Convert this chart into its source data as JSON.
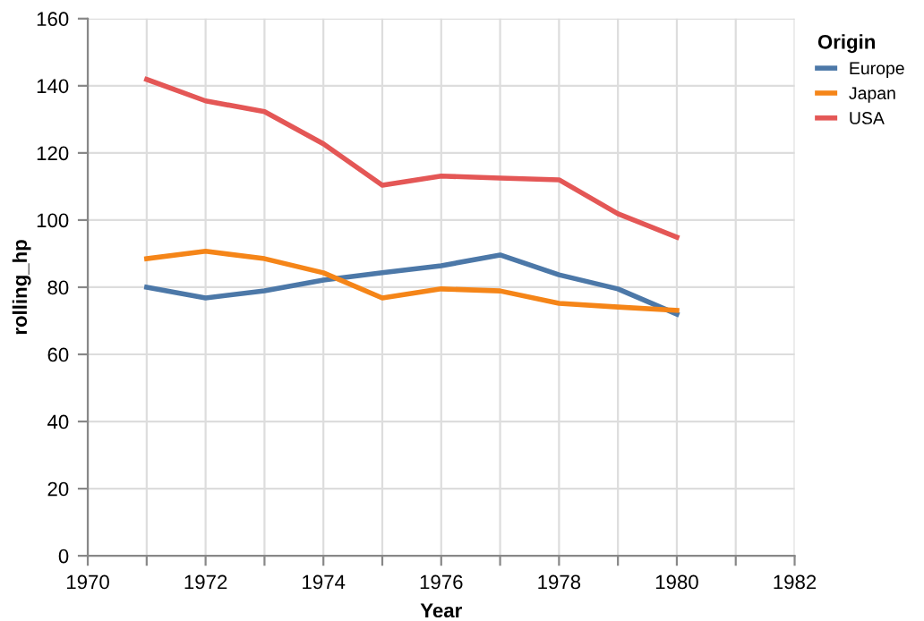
{
  "chart_data": {
    "type": "line",
    "xlabel": "Year",
    "ylabel": "rolling_hp",
    "legend_title": "Origin",
    "legend": "top right",
    "grid": true,
    "marker": "none",
    "line_style": "solid",
    "x": [
      1971,
      1972,
      1973,
      1974,
      1975,
      1976,
      1977,
      1978,
      1979,
      1980
    ],
    "xlim": [
      1970,
      1982
    ],
    "xticks": [
      1970,
      {
        "value": 1971,
        "label": null
      },
      1972,
      {
        "value": 1973,
        "label": null
      },
      1974,
      {
        "value": 1975,
        "label": null
      },
      1976,
      {
        "value": 1977,
        "label": null
      },
      1978,
      {
        "value": 1979,
        "label": null
      },
      1980,
      {
        "value": 1981,
        "label": null
      },
      1982
    ],
    "ylim": [
      0,
      160
    ],
    "yticks": [
      0,
      20,
      40,
      60,
      80,
      100,
      120,
      140,
      160
    ],
    "series": [
      {
        "name": "Europe",
        "color": "#4c78a8",
        "values": [
          80,
          76.8,
          78.9,
          82.1,
          84.3,
          86.4,
          89.6,
          83.7,
          79.5,
          72
        ]
      },
      {
        "name": "Japan",
        "color": "#f58518",
        "values": [
          88.5,
          90.7,
          88.5,
          84.3,
          76.8,
          79.5,
          78.9,
          75.2,
          74.1,
          73.1
        ]
      },
      {
        "name": "USA",
        "color": "#e45756",
        "values": [
          141.9,
          135.5,
          132.3,
          122.7,
          110.4,
          113.1,
          112.5,
          112,
          101.9,
          94.9
        ]
      }
    ]
  }
}
